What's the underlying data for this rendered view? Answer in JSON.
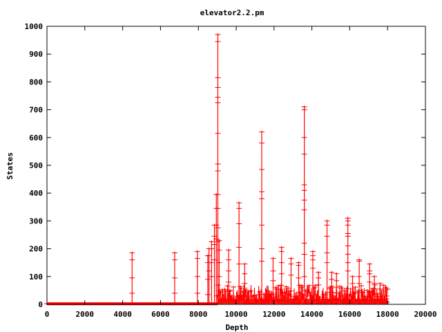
{
  "chart_data": {
    "type": "line",
    "title": "elevator2.2.pm",
    "xlabel": "Depth",
    "ylabel": "States",
    "xlim": [
      0,
      20000
    ],
    "ylim": [
      0,
      1000
    ],
    "grid": false,
    "legend": "none",
    "point_marker": "plus",
    "colors": {
      "series": "#ff0000",
      "axes": "#000000",
      "background": "#ffffff"
    },
    "x_ticks": [
      "0",
      "2000",
      "4000",
      "6000",
      "8000",
      "10000",
      "12000",
      "14000",
      "16000",
      "18000",
      "20000"
    ],
    "y_ticks": [
      "0",
      "100",
      "200",
      "300",
      "400",
      "500",
      "600",
      "700",
      "800",
      "900",
      "1000"
    ],
    "baseline": {
      "x_from": 0,
      "x_to": 9000,
      "y": 2
    },
    "series": [
      {
        "spikes": [
          {
            "x": 4500,
            "values": [
              185,
              160,
              95,
              40
            ]
          },
          {
            "x": 6750,
            "values": [
              185,
              160,
              95,
              40
            ]
          },
          {
            "x": 7950,
            "values": [
              190,
              165,
              100,
              40
            ]
          },
          {
            "x": 8500,
            "values": [
              175,
              150,
              90,
              35
            ]
          },
          {
            "x": 8560,
            "values": [
              200,
              175,
              120
            ]
          },
          {
            "x": 8700,
            "values": [
              225,
              200,
              150,
              100
            ]
          },
          {
            "x": 8850,
            "values": [
              285,
              245,
              215,
              160
            ]
          },
          {
            "x": 8950,
            "values": [
              395,
              345,
              285,
              235
            ]
          },
          {
            "x": 9030,
            "values": [
              970,
              945,
              815,
              780,
              745,
              725,
              615,
              505,
              480,
              395,
              345,
              275,
              225
            ]
          },
          {
            "x": 9100,
            "values": [
              230,
              195,
              150,
              100
            ]
          },
          {
            "x": 9600,
            "values": [
              195,
              160,
              120,
              80
            ]
          },
          {
            "x": 10150,
            "values": [
              365,
              345,
              290,
              205,
              145
            ]
          },
          {
            "x": 10450,
            "values": [
              145,
              110,
              75
            ]
          },
          {
            "x": 11350,
            "values": [
              620,
              580,
              485,
              405,
              380,
              285,
              200,
              155
            ]
          },
          {
            "x": 11950,
            "values": [
              165,
              120,
              85
            ]
          },
          {
            "x": 12400,
            "values": [
              205,
              190,
              150,
              110
            ]
          },
          {
            "x": 12900,
            "values": [
              165,
              145,
              105
            ]
          },
          {
            "x": 13300,
            "values": [
              150,
              140,
              95
            ]
          },
          {
            "x": 13600,
            "values": [
              710,
              700,
              600,
              540,
              430,
              410,
              375,
              340,
              220,
              180,
              100
            ]
          },
          {
            "x": 14050,
            "values": [
              190,
              175,
              160,
              130
            ]
          },
          {
            "x": 14350,
            "values": [
              115,
              95,
              70
            ]
          },
          {
            "x": 14800,
            "values": [
              300,
              285,
              245,
              185,
              150
            ]
          },
          {
            "x": 15050,
            "values": [
              115,
              90,
              65
            ]
          },
          {
            "x": 15300,
            "values": [
              110,
              85,
              60
            ]
          },
          {
            "x": 15900,
            "values": [
              310,
              300,
              285,
              255,
              245,
              210,
              180,
              150,
              120
            ]
          },
          {
            "x": 16150,
            "values": [
              100,
              75,
              55
            ]
          },
          {
            "x": 16500,
            "values": [
              160,
              155,
              100,
              75
            ]
          },
          {
            "x": 17050,
            "values": [
              145,
              120,
              110,
              80
            ]
          },
          {
            "x": 17300,
            "values": [
              100,
              75,
              55
            ]
          },
          {
            "x": 17600,
            "values": [
              75,
              55,
              40
            ]
          },
          {
            "x": 17950,
            "values": [
              30,
              20,
              10
            ]
          }
        ],
        "dense_region": {
          "x_from": 9000,
          "x_to": 18000,
          "y_from": 5,
          "y_to": 70
        }
      }
    ]
  }
}
